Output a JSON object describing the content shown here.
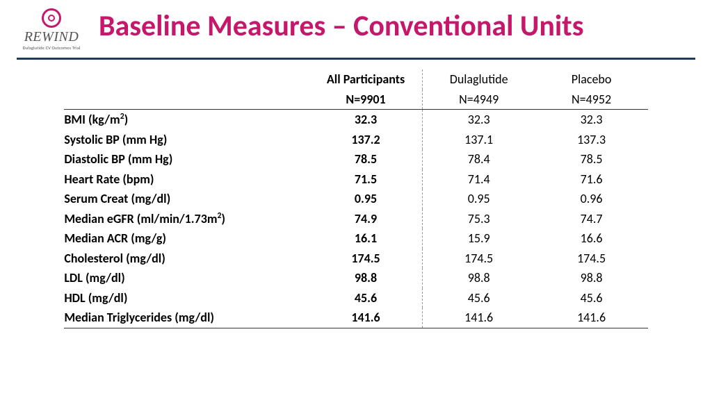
{
  "logo": {
    "name": "REWIND",
    "subtitle": "Dulaglutide CV Outcomes Trial"
  },
  "title": "Baseline Measures – Conventional Units",
  "colors": {
    "accent": "#c6186b",
    "rule": "#203864",
    "text": "#000000",
    "bg": "#ffffff"
  },
  "table": {
    "columns": [
      {
        "label": "",
        "n": ""
      },
      {
        "label": "All Participants",
        "n": "N=9901",
        "bold": true
      },
      {
        "label": "Dulaglutide",
        "n": "N=4949",
        "bold": false
      },
      {
        "label": "Placebo",
        "n": "N=4952",
        "bold": false
      }
    ],
    "rows": [
      {
        "label": "BMI (kg/m<sup>2</sup>)",
        "v": [
          "32.3",
          "32.3",
          "32.3"
        ]
      },
      {
        "label": "Systolic BP (mm Hg)",
        "v": [
          "137.2",
          "137.1",
          "137.3"
        ]
      },
      {
        "label": "Diastolic BP (mm Hg)",
        "v": [
          "78.5",
          "78.4",
          "78.5"
        ]
      },
      {
        "label": "Heart Rate (bpm)",
        "v": [
          "71.5",
          "71.4",
          "71.6"
        ]
      },
      {
        "label": "Serum Creat (mg/dl)",
        "v": [
          "0.95",
          "0.95",
          "0.96"
        ]
      },
      {
        "label": "Median eGFR (ml/min/1.73m<sup>2</sup>)",
        "v": [
          "74.9",
          "75.3",
          "74.7"
        ]
      },
      {
        "label": "Median ACR (mg/g)",
        "v": [
          "16.1",
          "15.9",
          "16.6"
        ]
      },
      {
        "label": "Cholesterol (mg/dl)",
        "v": [
          "174.5",
          "174.5",
          "174.5"
        ]
      },
      {
        "label": "LDL (mg/dl)",
        "v": [
          "98.8",
          "98.8",
          "98.8"
        ]
      },
      {
        "label": "HDL (mg/dl)",
        "v": [
          "45.6",
          "45.6",
          "45.6"
        ]
      },
      {
        "label": "Median Triglycerides (mg/dl)",
        "v": [
          "141.6",
          "141.6",
          "141.6"
        ]
      }
    ]
  }
}
